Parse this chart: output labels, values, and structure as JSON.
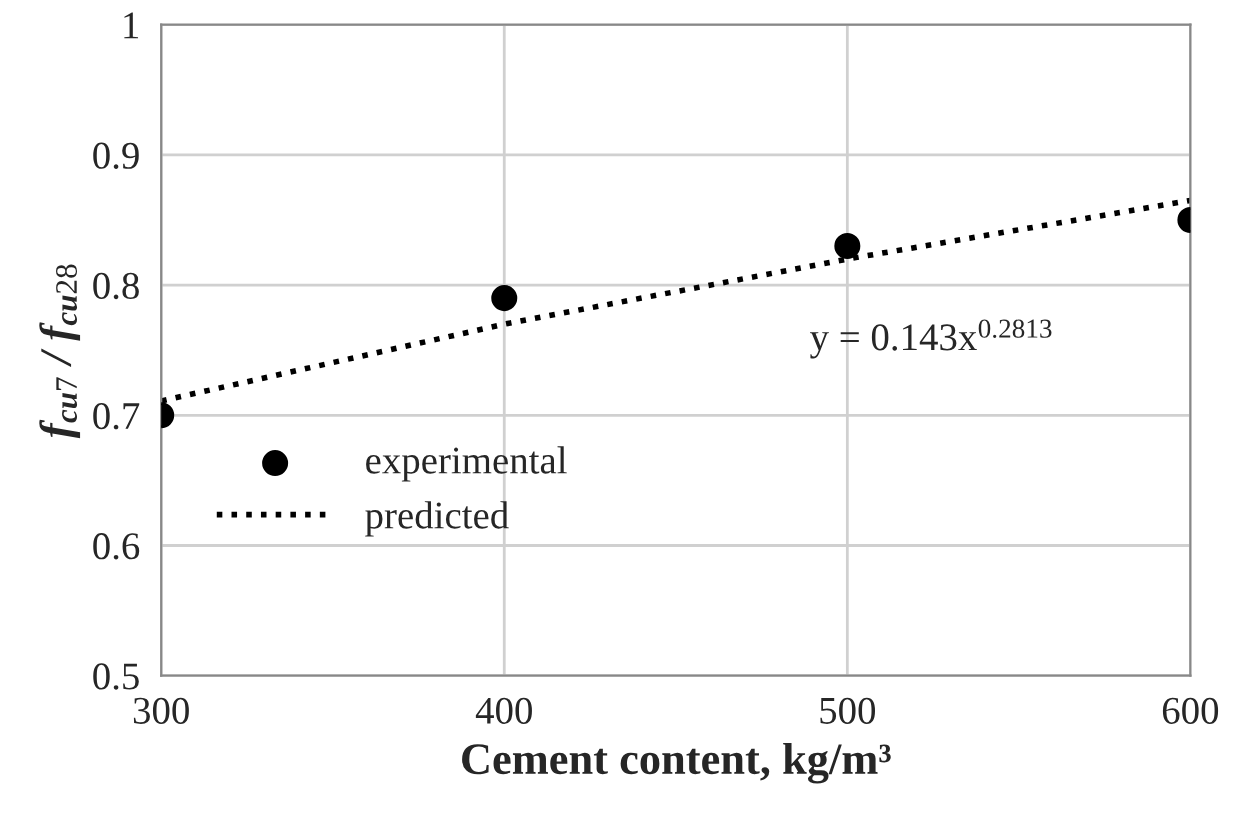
{
  "chart_data": {
    "type": "scatter",
    "xlabel": "Cement content, kg/m³",
    "ylabel": "f$_{cu7}$ / f$_{cu28}$",
    "series": [
      {
        "name": "experimental",
        "color": "#000000",
        "marker": "circle",
        "x": [
          300,
          400,
          500,
          600
        ],
        "values": [
          0.7,
          0.79,
          0.83,
          0.85
        ]
      },
      {
        "name": "predicted",
        "type": "line",
        "color": "#000000",
        "line_style": "dotted",
        "marker": "none",
        "x": [
          300,
          400,
          500,
          600
        ],
        "values": [
          0.711,
          0.77,
          0.82,
          0.865
        ]
      }
    ],
    "annotations": [
      "y = 0.143x$^{0.2813}$"
    ],
    "xlim": [
      300,
      600
    ],
    "xticks": [
      300,
      400,
      500,
      600
    ],
    "ylim": [
      0.5,
      1
    ],
    "yticks": [
      0.5,
      0.6,
      0.7,
      0.8,
      0.9,
      1
    ],
    "grid": true,
    "legend": "bottom left"
  }
}
